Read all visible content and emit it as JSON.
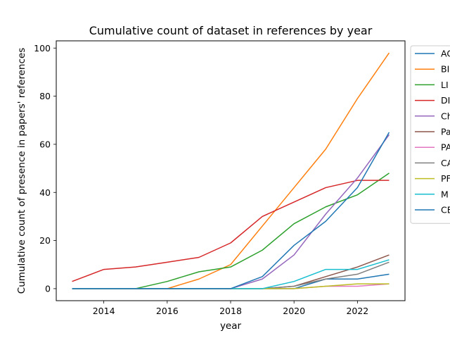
{
  "chart_data": {
    "type": "line",
    "title": "Cumulative count of dataset in references by year",
    "xlabel": "year",
    "ylabel": "Cumulative count of presence in papers' references",
    "xlim": [
      2012.5,
      2023.5
    ],
    "ylim": [
      -5,
      103
    ],
    "xticks": [
      2014,
      2016,
      2018,
      2020,
      2022
    ],
    "yticks": [
      0,
      20,
      40,
      60,
      80,
      100
    ],
    "grid": false,
    "legend_position": "outside-right",
    "x": [
      2013,
      2014,
      2015,
      2016,
      2017,
      2018,
      2019,
      2020,
      2021,
      2022,
      2023
    ],
    "series": [
      {
        "name": "AC",
        "color": "#1f77b4",
        "values": [
          0,
          0,
          0,
          0,
          0,
          0,
          0,
          0,
          4,
          4,
          6
        ]
      },
      {
        "name": "BI",
        "color": "#ff7f0e",
        "values": [
          0,
          0,
          0,
          0,
          4,
          10,
          26,
          42,
          58,
          79,
          98
        ]
      },
      {
        "name": "LI",
        "color": "#2ca02c",
        "values": [
          0,
          0,
          0,
          3,
          7,
          9,
          16,
          27,
          34,
          39,
          48
        ]
      },
      {
        "name": "DI",
        "color": "#d62728",
        "values": [
          3,
          8,
          9,
          11,
          13,
          19,
          30,
          36,
          42,
          45,
          45
        ]
      },
      {
        "name": "Ch",
        "color": "#9467bd",
        "values": [
          0,
          0,
          0,
          0,
          0,
          0,
          4,
          14,
          31,
          46,
          64
        ]
      },
      {
        "name": "Pa",
        "color": "#8c564b",
        "values": [
          0,
          0,
          0,
          0,
          0,
          0,
          0,
          1,
          5,
          9,
          14
        ]
      },
      {
        "name": "PA",
        "color": "#e377c2",
        "values": [
          0,
          0,
          0,
          0,
          0,
          0,
          0,
          0,
          1,
          1,
          2
        ]
      },
      {
        "name": "CA",
        "color": "#7f7f7f",
        "values": [
          0,
          0,
          0,
          0,
          0,
          0,
          0,
          1,
          4,
          6,
          11
        ]
      },
      {
        "name": "PF",
        "color": "#bcbd22",
        "values": [
          0,
          0,
          0,
          0,
          0,
          0,
          0,
          0,
          1,
          2,
          2
        ]
      },
      {
        "name": "M",
        "color": "#17becf",
        "values": [
          0,
          0,
          0,
          0,
          0,
          0,
          0,
          3,
          8,
          8,
          12
        ]
      },
      {
        "name": "CE",
        "color": "#1f77b4",
        "values": [
          0,
          0,
          0,
          0,
          0,
          0,
          5,
          18,
          28,
          42,
          65
        ]
      }
    ]
  }
}
